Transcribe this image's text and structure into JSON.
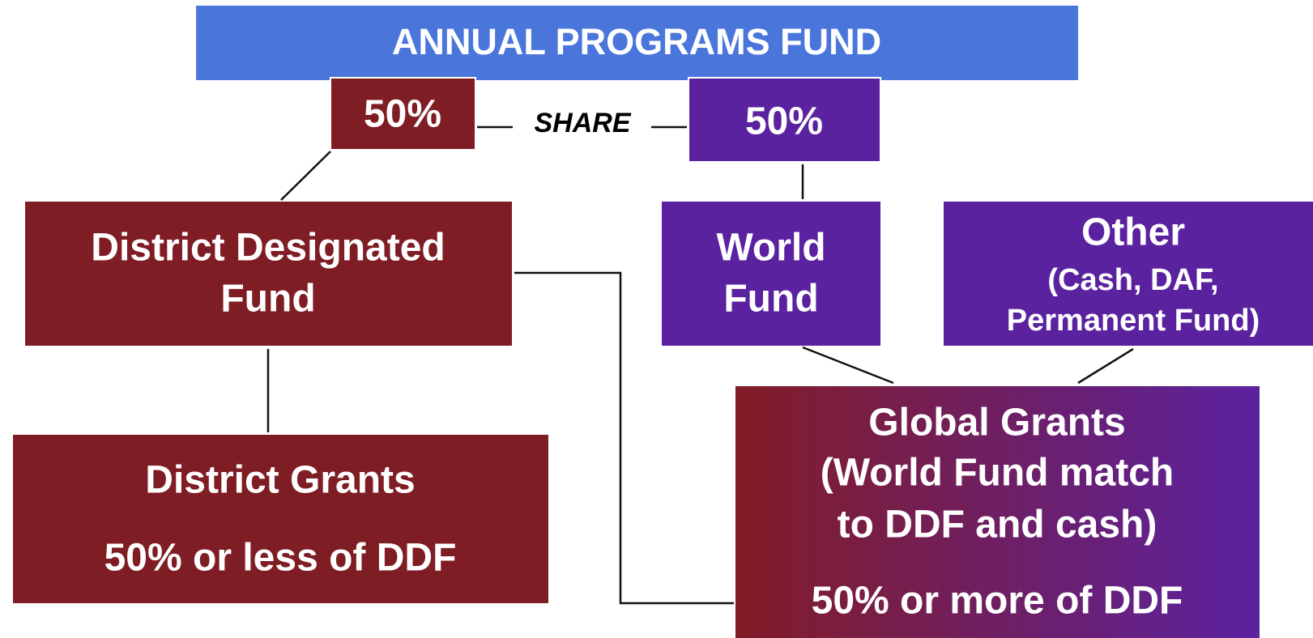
{
  "title": "ANNUAL PROGRAMS FUND",
  "share": {
    "left": "50%",
    "label": "SHARE",
    "right": "50%"
  },
  "nodes": {
    "district_designated": {
      "lines": [
        "District Designated",
        "Fund"
      ]
    },
    "world_fund": {
      "lines": [
        "World",
        "Fund"
      ]
    },
    "other": {
      "title": "Other",
      "lines": [
        "(Cash, DAF,",
        "Permanent Fund)"
      ]
    },
    "district_grants": {
      "title": "District Grants",
      "note": "50% or less of DDF"
    },
    "global_grants": {
      "lines": [
        "Global Grants",
        "(World Fund match",
        "to DDF and cash)"
      ],
      "note": "50% or more of DDF"
    }
  }
}
